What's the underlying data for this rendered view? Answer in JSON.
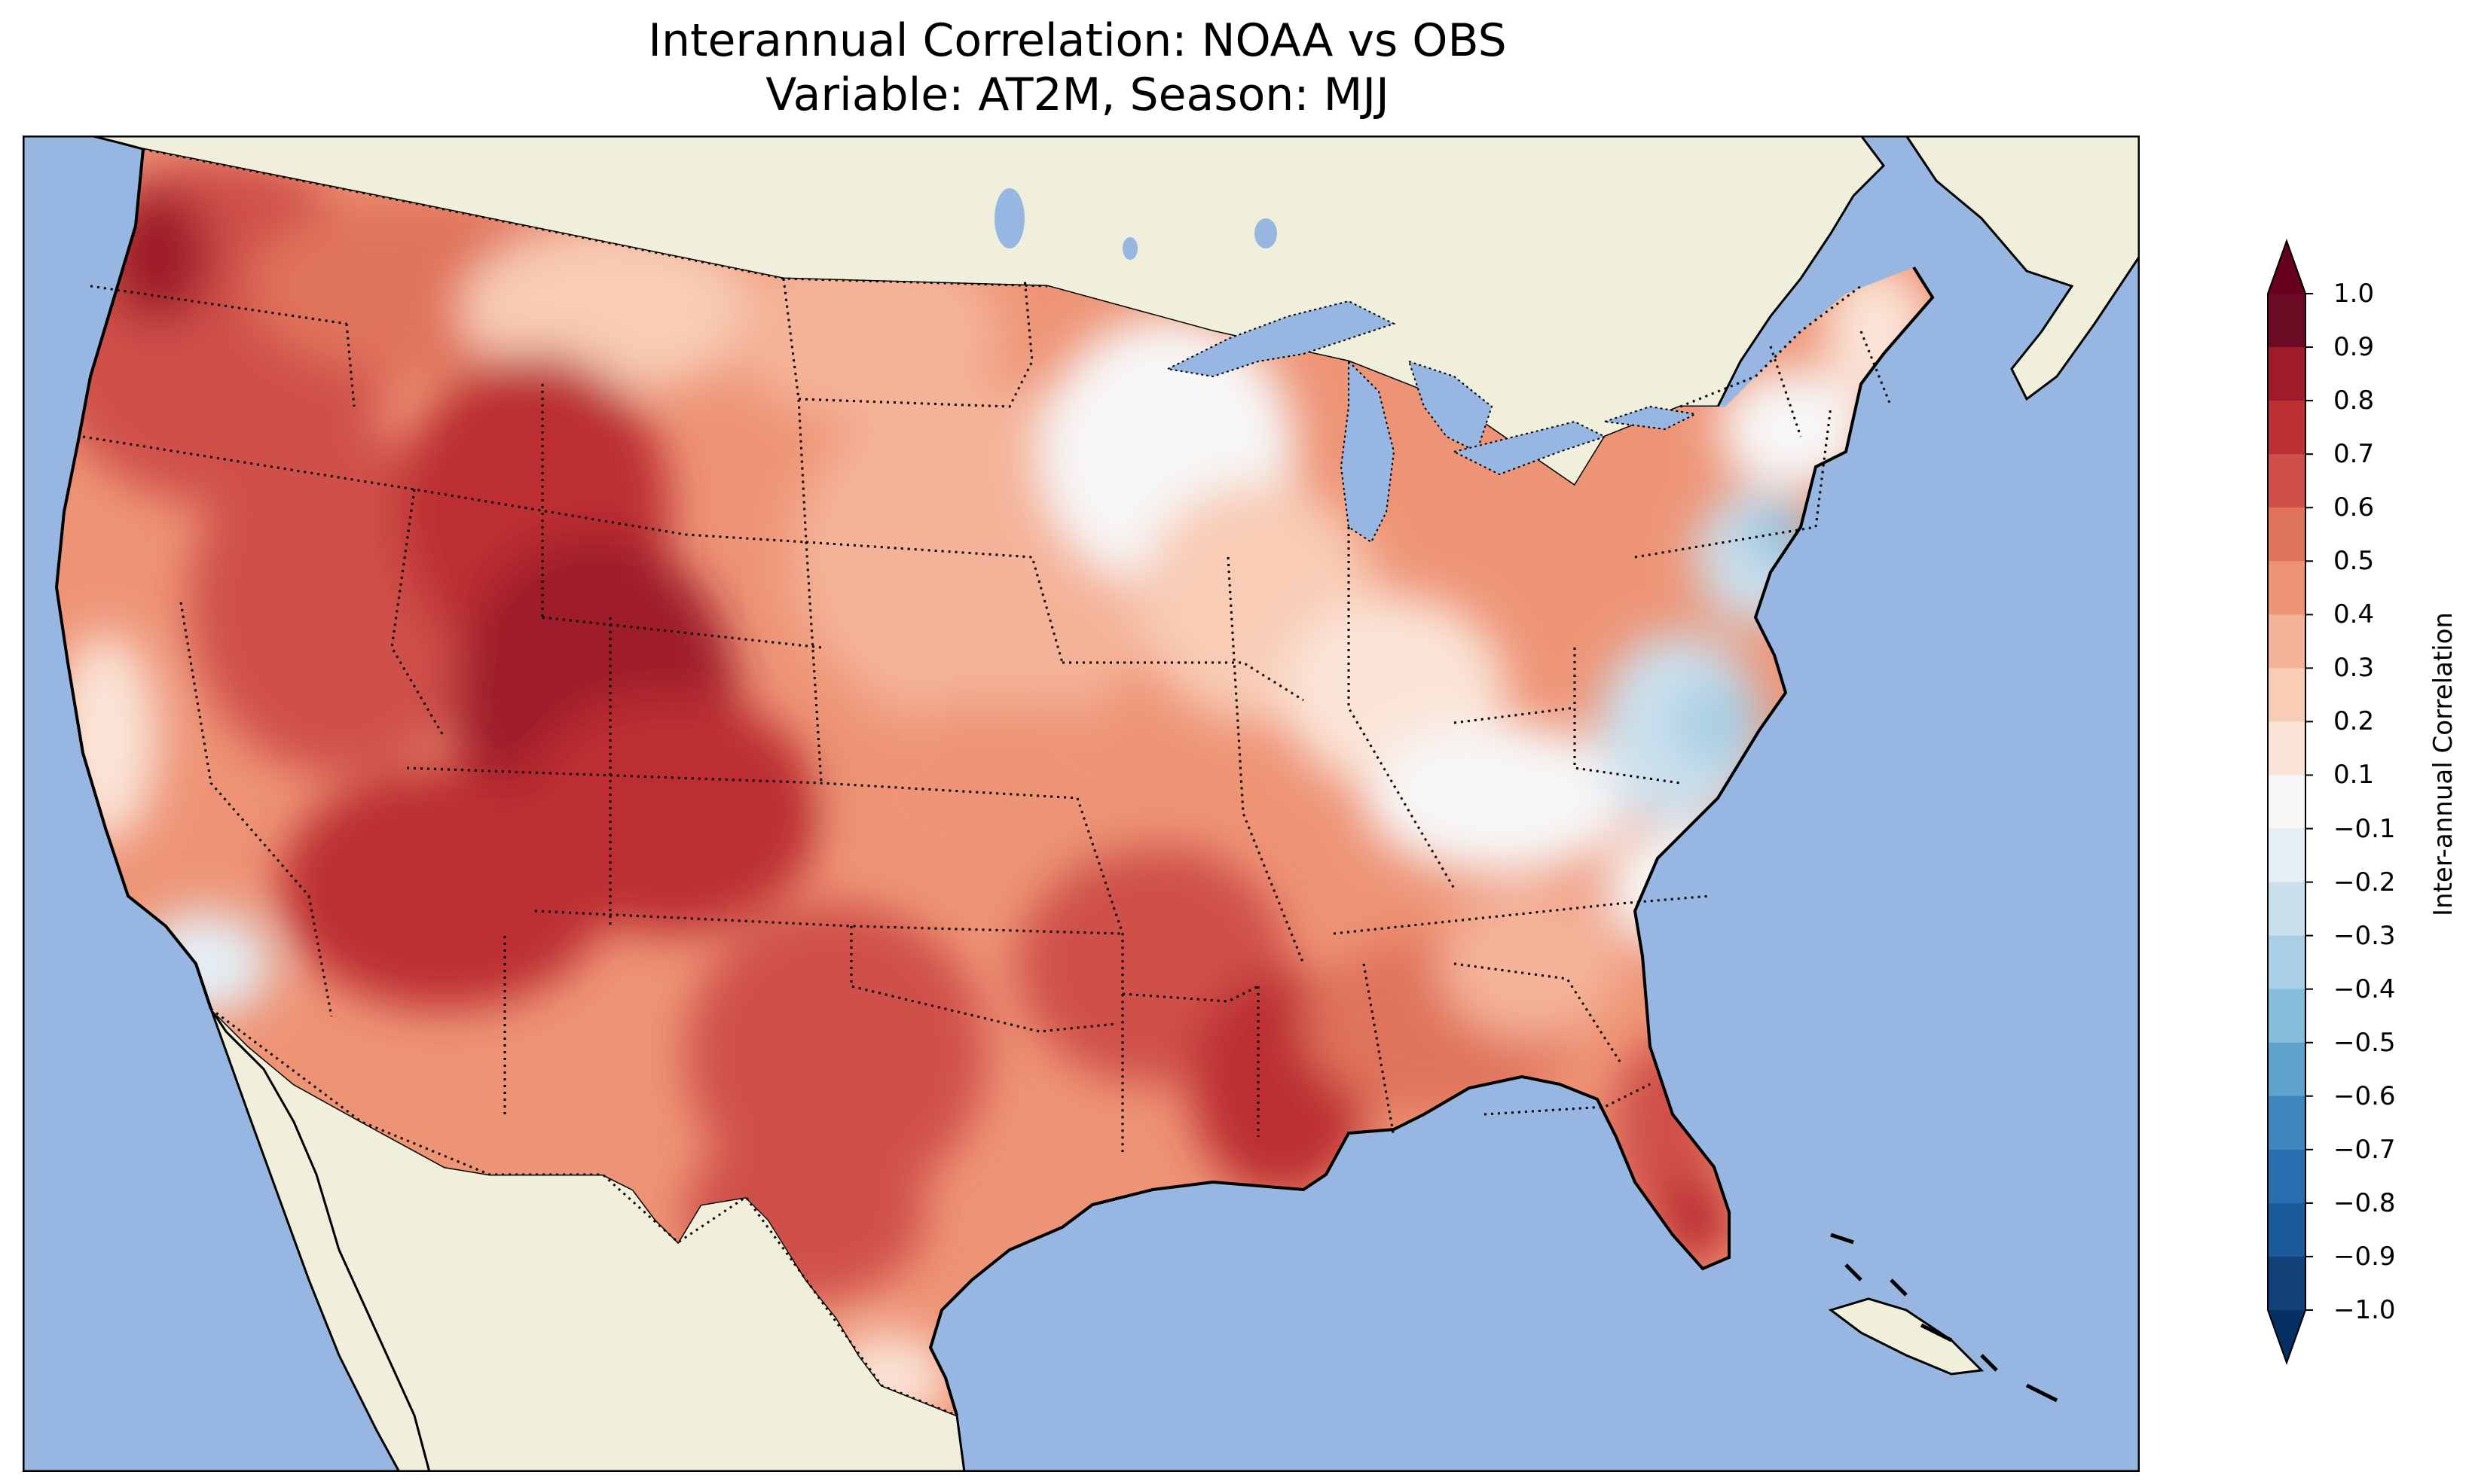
{
  "title": {
    "line1": "Interannual Correlation: NOAA vs OBS",
    "line2": "Variable: AT2M, Season: MJJ"
  },
  "map": {
    "region": "CONUS",
    "ocean_color": "#97b6e1",
    "land_color": "#efefdb",
    "coastline_color": "#000000",
    "state_border_style": "dotted"
  },
  "colorbar": {
    "label": "Inter-annual Correlation",
    "ticks": [
      "1.0",
      "0.9",
      "0.8",
      "0.7",
      "0.6",
      "0.5",
      "0.4",
      "0.3",
      "0.2",
      "0.1",
      "−0.1",
      "−0.2",
      "−0.3",
      "−0.4",
      "−0.5",
      "−0.6",
      "−0.7",
      "−0.8",
      "−0.9",
      "−1.0"
    ],
    "colors_top_to_bottom": [
      "#6a0a23",
      "#9f1a2b",
      "#bc2f33",
      "#cf5049",
      "#e0735c",
      "#ee9476",
      "#f4b398",
      "#f8ccb5",
      "#fae4d7",
      "#f7f7f7",
      "#e4eef4",
      "#cbe0ed",
      "#a9cfe4",
      "#86bcdc",
      "#5fa2cc",
      "#3d87bd",
      "#296faf",
      "#1c5b9b",
      "#12417a"
    ],
    "extend": "both",
    "over_color": "#67001f",
    "under_color": "#053061"
  }
}
